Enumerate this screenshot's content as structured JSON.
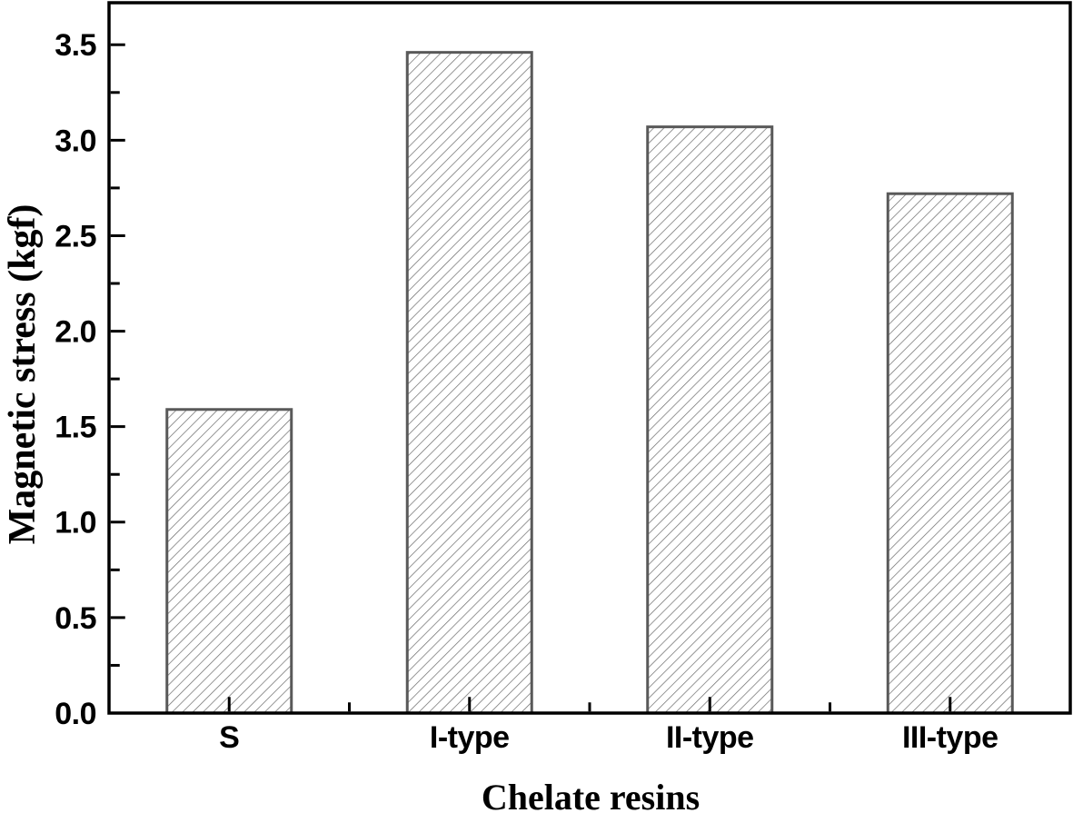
{
  "chart_data": {
    "type": "bar",
    "title": "",
    "xlabel": "Chelate resins",
    "ylabel": "Magnetic stress (kgf)",
    "categories": [
      "S",
      "I-type",
      "II-type",
      "III-type"
    ],
    "values": [
      1.59,
      3.46,
      3.07,
      2.72
    ],
    "ylim": [
      0,
      3.72
    ],
    "yticks_major": [
      0,
      0.5,
      1,
      1.5,
      2,
      2.5,
      3,
      3.5
    ],
    "ytick_labels": [
      "0.0",
      "0.5",
      "1.0",
      "1.5",
      "2.0",
      "2.5",
      "3.0",
      "3.5"
    ],
    "yticks_minor": [
      0.25,
      0.75,
      1.25,
      1.75,
      2.25,
      2.75,
      3.25
    ],
    "grid": false,
    "legend": "none",
    "tick_direction": "in",
    "style": {
      "background_color": "#ffffff",
      "axis_color": "#000000",
      "bar_fill": "#ffffff",
      "bar_edge_color": "#595959",
      "hatch": "forward-diagonal",
      "hatch_color": "#6a6a6a",
      "text_color": "#000000"
    }
  }
}
